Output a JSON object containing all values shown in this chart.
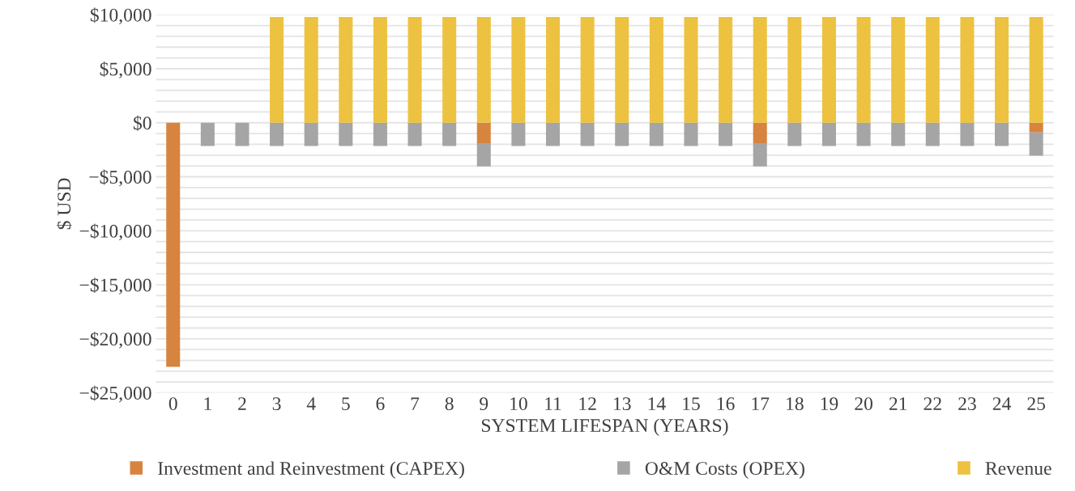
{
  "chart_data": {
    "type": "bar",
    "stacked": true,
    "xlabel": "SYSTEM LIFESPAN (YEARS)",
    "ylabel": "$ USD",
    "categories": [
      "0",
      "1",
      "2",
      "3",
      "4",
      "5",
      "6",
      "7",
      "8",
      "9",
      "10",
      "11",
      "12",
      "13",
      "14",
      "15",
      "16",
      "17",
      "18",
      "19",
      "20",
      "21",
      "22",
      "23",
      "24",
      "25"
    ],
    "series": [
      {
        "name": "Investment and Reinvestment (CAPEX)",
        "color": "#d6843f",
        "values": [
          -22600,
          0,
          0,
          0,
          0,
          0,
          0,
          0,
          0,
          -1900,
          0,
          0,
          0,
          0,
          0,
          0,
          0,
          -1900,
          0,
          0,
          0,
          0,
          0,
          0,
          0,
          -900
        ]
      },
      {
        "name": "O&M Costs (OPEX)",
        "color": "#a5a5a5",
        "values": [
          0,
          -2150,
          -2150,
          -2150,
          -2150,
          -2150,
          -2150,
          -2150,
          -2150,
          -2150,
          -2150,
          -2150,
          -2150,
          -2150,
          -2150,
          -2150,
          -2150,
          -2150,
          -2150,
          -2150,
          -2150,
          -2150,
          -2150,
          -2150,
          -2150,
          -2150
        ]
      },
      {
        "name": "Revenue",
        "color": "#edc240",
        "values": [
          0,
          0,
          0,
          9800,
          9800,
          9800,
          9800,
          9800,
          9800,
          9800,
          9800,
          9800,
          9800,
          9800,
          9800,
          9800,
          9800,
          9800,
          9800,
          9800,
          9800,
          9800,
          9800,
          9800,
          9800,
          9800
        ]
      }
    ],
    "ylim": [
      -25000,
      10000
    ],
    "yticks": [
      {
        "value": -25000,
        "label": "−$25,000"
      },
      {
        "value": -24000,
        "label": null
      },
      {
        "value": -23000,
        "label": null
      },
      {
        "value": -22000,
        "label": null
      },
      {
        "value": -21000,
        "label": null
      },
      {
        "value": -20000,
        "label": "−$20,000"
      },
      {
        "value": -19000,
        "label": null
      },
      {
        "value": -18000,
        "label": null
      },
      {
        "value": -17000,
        "label": null
      },
      {
        "value": -16000,
        "label": null
      },
      {
        "value": -15000,
        "label": "−$15,000"
      },
      {
        "value": -14000,
        "label": null
      },
      {
        "value": -13000,
        "label": null
      },
      {
        "value": -12000,
        "label": null
      },
      {
        "value": -11000,
        "label": null
      },
      {
        "value": -10000,
        "label": "−$10,000"
      },
      {
        "value": -9000,
        "label": null
      },
      {
        "value": -8000,
        "label": null
      },
      {
        "value": -7000,
        "label": null
      },
      {
        "value": -6000,
        "label": null
      },
      {
        "value": -5000,
        "label": "−$5,000"
      },
      {
        "value": -4000,
        "label": null
      },
      {
        "value": -3000,
        "label": null
      },
      {
        "value": -2000,
        "label": null
      },
      {
        "value": -1000,
        "label": null
      },
      {
        "value": 0,
        "label": "$0"
      },
      {
        "value": 1000,
        "label": null
      },
      {
        "value": 2000,
        "label": null
      },
      {
        "value": 3000,
        "label": null
      },
      {
        "value": 4000,
        "label": null
      },
      {
        "value": 5000,
        "label": "$5,000"
      },
      {
        "value": 6000,
        "label": null
      },
      {
        "value": 7000,
        "label": null
      },
      {
        "value": 8000,
        "label": null
      },
      {
        "value": 9000,
        "label": null
      },
      {
        "value": 10000,
        "label": "$10,000"
      }
    ],
    "grid": "y",
    "legend": "bottom"
  }
}
